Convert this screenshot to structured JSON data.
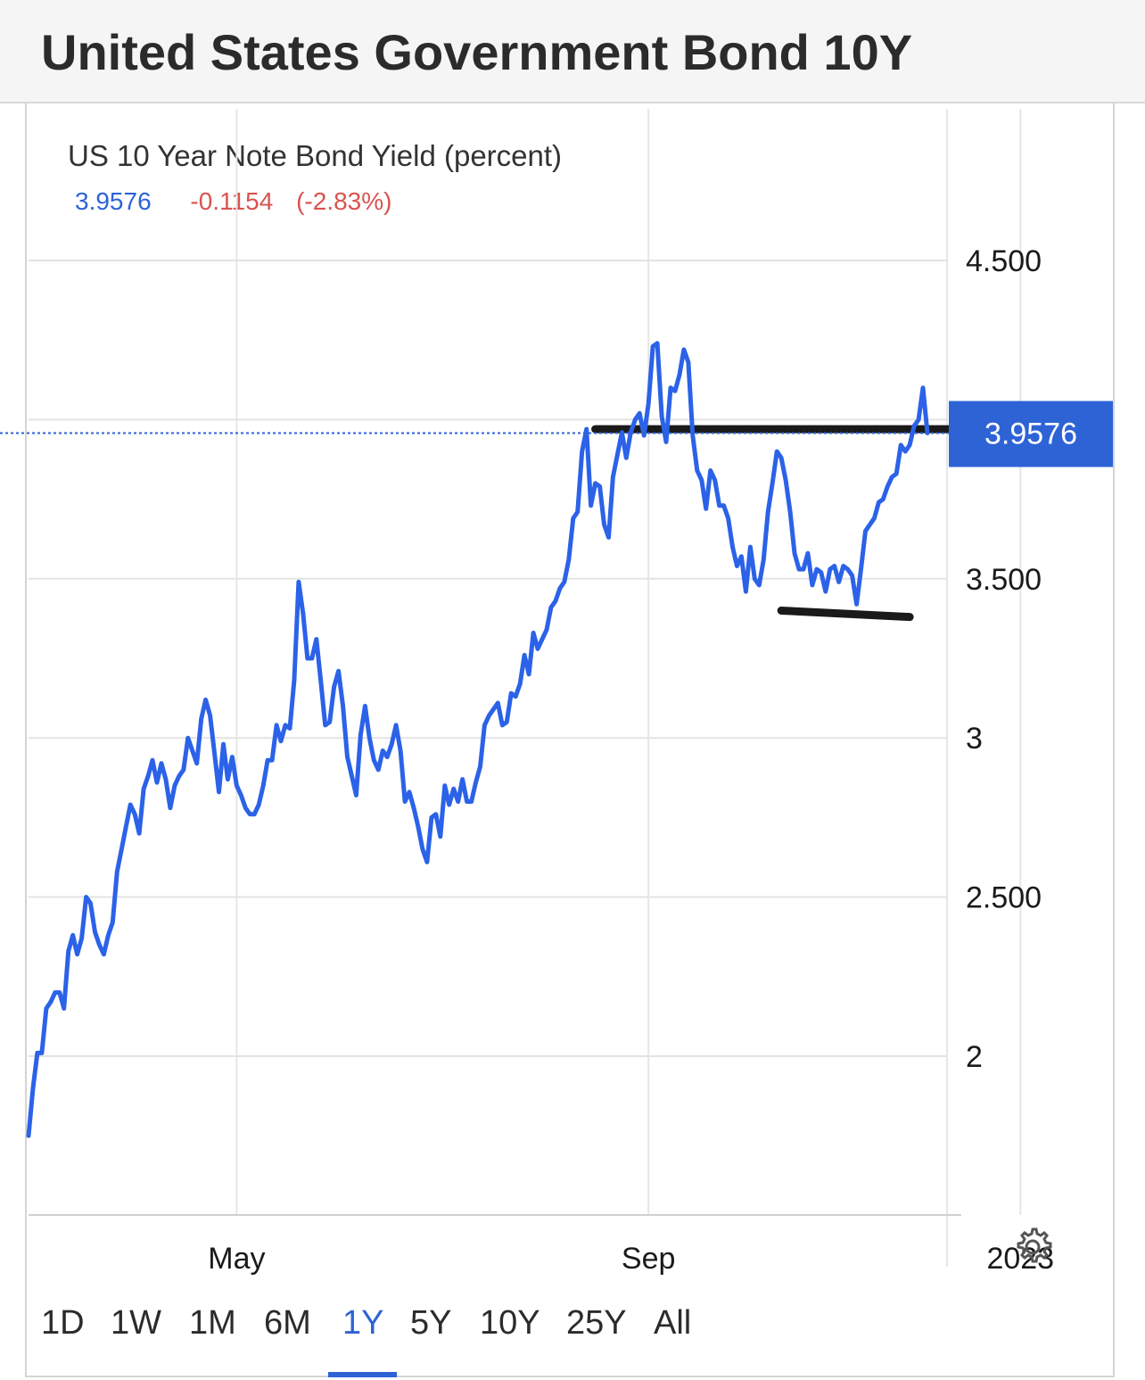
{
  "header": {
    "title": "United States Government Bond 10Y"
  },
  "quote": {
    "series_title": "US 10 Year Note Bond Yield (percent)",
    "last": "3.9576",
    "change": "-0.1154",
    "change_pct": "(-2.83%)"
  },
  "range_tabs": [
    "1D",
    "1W",
    "1M",
    "6M",
    "1Y",
    "5Y",
    "10Y",
    "25Y",
    "All"
  ],
  "active_range": "1Y",
  "colors": {
    "line": "#2b62e8",
    "accent": "#2e63d6",
    "negative": "#d9534f",
    "annotation": "#1a1a1a"
  },
  "icons": {
    "settings": "gear-icon"
  },
  "chart_data": {
    "type": "line",
    "title": "US 10 Year Note Bond Yield (percent)",
    "xlabel": "",
    "ylabel": "",
    "x_tick_labels": [
      "May",
      "Sep",
      "2023"
    ],
    "x_tick_index": [
      47,
      140,
      224
    ],
    "y_ticks": [
      2,
      2.5,
      3,
      3.5,
      4.5
    ],
    "y_tick_labels": [
      "2",
      "2.500",
      "3",
      "3.500",
      "4.500"
    ],
    "ylim": [
      1.5,
      4.95
    ],
    "grid": true,
    "last_value": 3.9576,
    "last_value_label": "3.9576",
    "series": [
      {
        "values": [
          1.75,
          1.9,
          2.01,
          2.01,
          2.15,
          2.17,
          2.2,
          2.2,
          2.15,
          2.33,
          2.38,
          2.32,
          2.37,
          2.5,
          2.48,
          2.39,
          2.35,
          2.32,
          2.38,
          2.42,
          2.58,
          2.65,
          2.72,
          2.79,
          2.76,
          2.7,
          2.84,
          2.88,
          2.93,
          2.86,
          2.92,
          2.87,
          2.78,
          2.85,
          2.88,
          2.9,
          3.0,
          2.96,
          2.92,
          3.06,
          3.12,
          3.07,
          2.95,
          2.83,
          2.98,
          2.87,
          2.94,
          2.85,
          2.82,
          2.78,
          2.76,
          2.76,
          2.79,
          2.85,
          2.93,
          2.93,
          3.04,
          2.99,
          3.04,
          3.03,
          3.18,
          3.49,
          3.39,
          3.25,
          3.25,
          3.31,
          3.18,
          3.04,
          3.05,
          3.16,
          3.21,
          3.1,
          2.94,
          2.88,
          2.82,
          3.01,
          3.1,
          3.0,
          2.93,
          2.9,
          2.96,
          2.94,
          2.98,
          3.04,
          2.96,
          2.8,
          2.83,
          2.78,
          2.72,
          2.65,
          2.61,
          2.75,
          2.76,
          2.69,
          2.85,
          2.79,
          2.84,
          2.8,
          2.87,
          2.8,
          2.8,
          2.86,
          2.91,
          3.04,
          3.07,
          3.09,
          3.11,
          3.04,
          3.05,
          3.14,
          3.13,
          3.17,
          3.26,
          3.2,
          3.33,
          3.28,
          3.31,
          3.34,
          3.41,
          3.43,
          3.47,
          3.49,
          3.56,
          3.69,
          3.71,
          3.9,
          3.97,
          3.73,
          3.8,
          3.79,
          3.67,
          3.63,
          3.82,
          3.89,
          3.96,
          3.88,
          3.96,
          4.0,
          4.02,
          3.95,
          4.05,
          4.23,
          4.24,
          4.01,
          3.93,
          4.1,
          4.09,
          4.14,
          4.22,
          4.18,
          3.95,
          3.84,
          3.81,
          3.72,
          3.84,
          3.81,
          3.73,
          3.73,
          3.69,
          3.6,
          3.54,
          3.57,
          3.46,
          3.6,
          3.5,
          3.48,
          3.56,
          3.71,
          3.8,
          3.9,
          3.88,
          3.81,
          3.71,
          3.58,
          3.53,
          3.53,
          3.58,
          3.48,
          3.53,
          3.52,
          3.46,
          3.53,
          3.54,
          3.49,
          3.54,
          3.53,
          3.51,
          3.42,
          3.53,
          3.65,
          3.67,
          3.69,
          3.74,
          3.75,
          3.79,
          3.82,
          3.83,
          3.92,
          3.9,
          3.92,
          3.98,
          4.0,
          4.1,
          3.9576
        ]
      }
    ],
    "annotations": [
      {
        "type": "hand-drawn-line",
        "from": {
          "index": 128,
          "value": 3.97
        },
        "to": {
          "index": 218,
          "value": 3.97
        }
      },
      {
        "type": "hand-drawn-line",
        "from": {
          "index": 170,
          "value": 3.4
        },
        "to": {
          "index": 199,
          "value": 3.38
        }
      }
    ]
  }
}
